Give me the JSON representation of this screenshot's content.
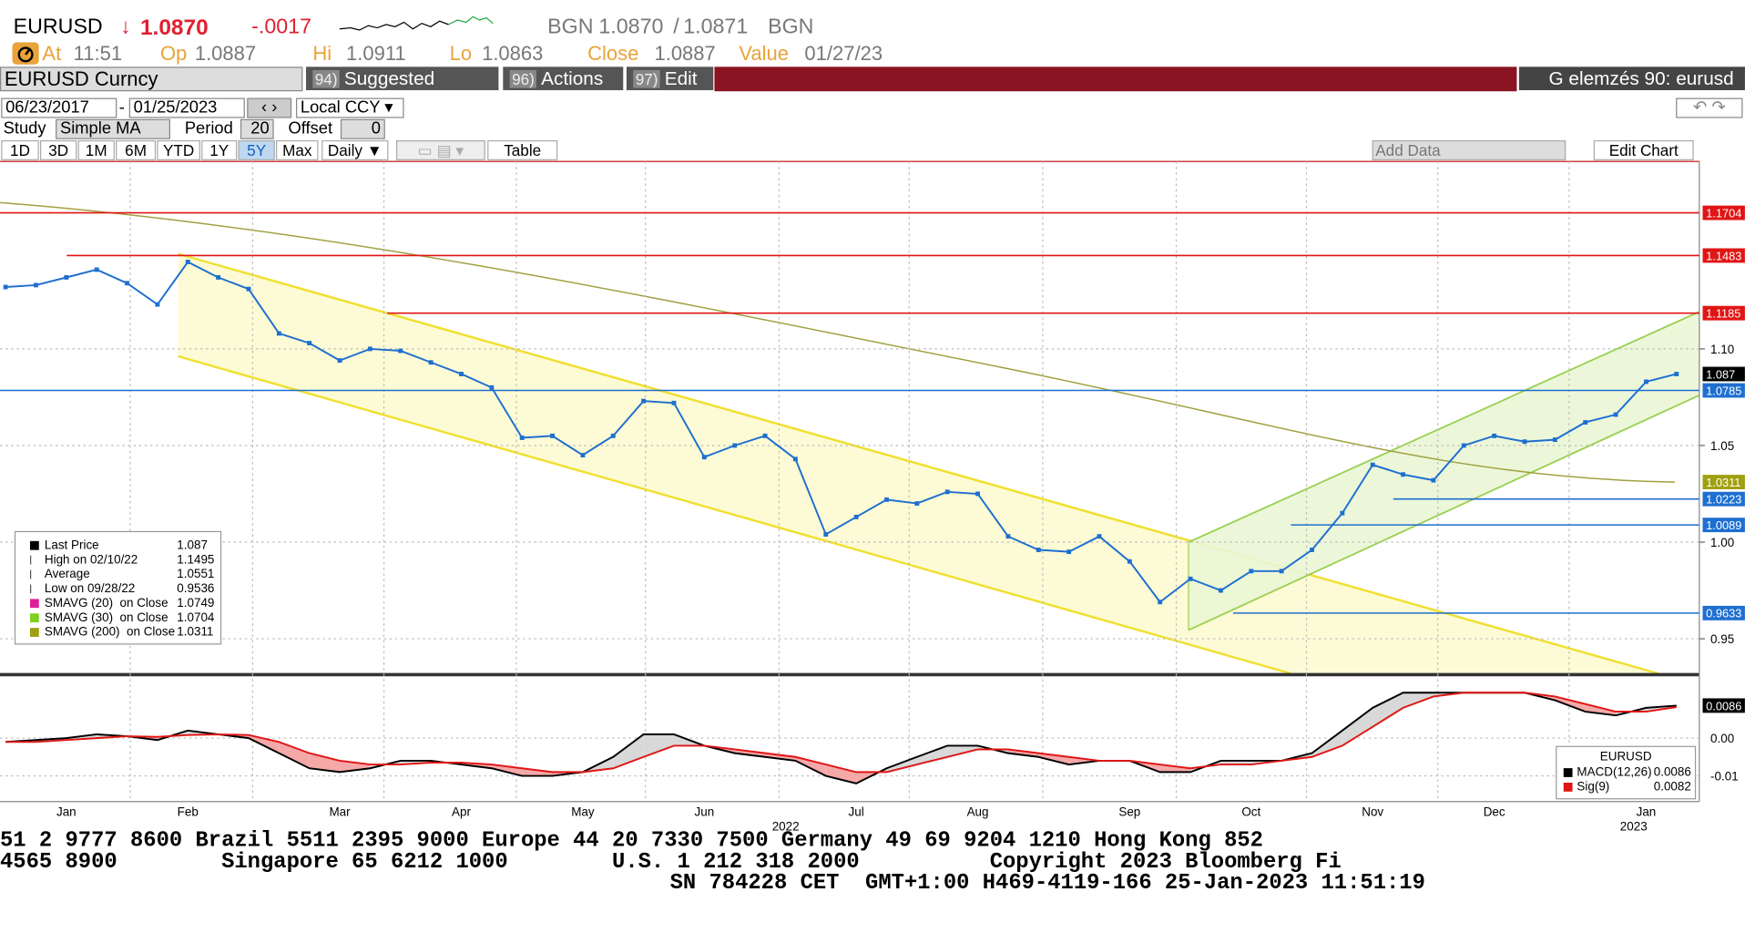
{
  "header": {
    "ticker": "EURUSD",
    "last_arrow": "↓",
    "last": "1.0870",
    "change": "-.0017",
    "source": "BGN",
    "bid": "1.0870",
    "separator": "/",
    "ask": "1.0871",
    "source2": "BGN"
  },
  "quote": {
    "at_label": "At",
    "time": "11:51",
    "open_label": "Op",
    "open": "1.0887",
    "high_label": "Hi",
    "high": "1.0911",
    "low_label": "Lo",
    "low": "1.0863",
    "close_label": "Close",
    "close": "1.0887",
    "value_label": "Value",
    "value_date": "01/27/23"
  },
  "toolbar": {
    "security": "EURUSD Curncy",
    "menus": [
      {
        "number": "94)",
        "label": "Suggested Charts"
      },
      {
        "number": "96)",
        "label": "Actions"
      },
      {
        "number": "97)",
        "label": "Edit"
      }
    ],
    "launchpad": "G elemzés 90: eurusd"
  },
  "date_range": {
    "start": "06/23/2017",
    "separator": "-",
    "end": "01/25/2023",
    "currency": "Local CCY"
  },
  "study": {
    "label": "Study",
    "type": "Simple MA",
    "period_label": "Period",
    "period": "20",
    "offset_label": "Offset",
    "offset": "0"
  },
  "ranges": {
    "buttons": [
      "1D",
      "3D",
      "1M",
      "6M",
      "YTD",
      "1Y",
      "5Y",
      "Max"
    ],
    "selected_index": 6,
    "frequency": "Daily",
    "table": "Table",
    "add_data": "Add Data",
    "edit_chart": "Edit Chart"
  },
  "legend_box": [
    {
      "label": "Last Price",
      "value": "1.087",
      "color": "#000000"
    },
    {
      "label": "High on 02/10/22",
      "value": "1.1495",
      "color": null
    },
    {
      "label": "Average",
      "value": "1.0551",
      "color": null
    },
    {
      "label": "Low on 09/28/22",
      "value": "0.9536",
      "color": null
    },
    {
      "label": "SMAVG (20)  on Close",
      "value": "1.0749",
      "color": "#e0209a"
    },
    {
      "label": "SMAVG (30)  on Close",
      "value": "1.0704",
      "color": "#7fd020"
    },
    {
      "label": "SMAVG (200)  on Close",
      "value": "1.0311",
      "color": "#a0a010"
    }
  ],
  "macd_legend": {
    "title": "EURUSD",
    "values": [
      "0.0086",
      "0.0082"
    ]
  },
  "ticker_lines": [
    "51 2 9777 8600 Brazil 5511 2395 9000 Europe 44 20 7330 7500 Germany 49 69 9204 1210 Hong Kong 852",
    "4565 8900        Singapore 65 6212 1000        U.S. 1 212 318 2000          Copyright 2023 Bloomberg Fi",
    "SN 784228 CET  GMT+1:00 H469-4119-166 25-Jan-2023 11:51:19"
  ],
  "chart_data": [
    {
      "type": "line",
      "color": "#1e6fd0",
      "categories": [
        null,
        null,
        "Jan",
        null,
        null,
        null,
        "Feb",
        null,
        null,
        null,
        null,
        "Mar",
        null,
        null,
        null,
        "Apr",
        null,
        null,
        null,
        "May",
        null,
        null,
        null,
        "Jun",
        null,
        null,
        null,
        null,
        "Jul",
        null,
        null,
        null,
        "Aug",
        null,
        null,
        null,
        null,
        "Sep",
        null,
        null,
        null,
        "Oct",
        null,
        null,
        null,
        "Nov",
        null,
        null,
        null,
        "Dec",
        null,
        null,
        null,
        null,
        "Jan",
        null
      ],
      "values": [
        1.132,
        1.133,
        1.137,
        1.141,
        1.134,
        1.123,
        1.145,
        1.137,
        1.131,
        1.108,
        1.103,
        1.094,
        1.1,
        1.099,
        1.093,
        1.087,
        1.08,
        1.054,
        1.055,
        1.045,
        1.055,
        1.073,
        1.072,
        1.044,
        1.05,
        1.055,
        1.043,
        1.004,
        1.013,
        1.022,
        1.02,
        1.026,
        1.025,
        1.003,
        0.996,
        0.995,
        1.003,
        0.99,
        0.969,
        0.981,
        0.975,
        0.985,
        0.985,
        0.996,
        1.015,
        1.04,
        1.035,
        1.032,
        1.05,
        1.055,
        1.052,
        1.053,
        1.062,
        1.066,
        1.083,
        1.087
      ],
      "year_labels": [
        "2022",
        "2023"
      ],
      "ylim": [
        0.932,
        1.197
      ],
      "yticks": [
        0.95,
        {
          "value": 1,
          "label": "1.00"
        },
        1.05,
        {
          "value": 1.1,
          "label": "1.10"
        }
      ],
      "grid": true,
      "levels": [
        {
          "value": 1.1704,
          "color": "#e01515",
          "line": true
        },
        {
          "value": 1.1483,
          "color": "#e01515",
          "line": true
        },
        {
          "value": 1.1185,
          "color": "#e01515",
          "line": true
        },
        {
          "value": 1.087,
          "color": "#000000",
          "line": false
        },
        {
          "value": 1.0785,
          "color": "#1e6fd0",
          "line": true
        },
        {
          "value": 1.0311,
          "color": "#a0a010",
          "line": false
        },
        {
          "value": 1.0223,
          "color": "#1e6fd0",
          "line": true
        },
        {
          "value": 1.0089,
          "color": "#1e6fd0",
          "line": true
        },
        {
          "value": 0.9633,
          "color": "#1e6fd0",
          "line": true
        }
      ]
    },
    {
      "type": "line",
      "series": [
        {
          "name": "MACD(12,26)",
          "color": "#000000",
          "values": [
            -0.001,
            -0.0005,
            0,
            0.001,
            0.0005,
            -0.0005,
            0.002,
            0.001,
            0,
            -0.004,
            -0.008,
            -0.009,
            -0.008,
            -0.006,
            -0.006,
            -0.007,
            -0.008,
            -0.01,
            -0.01,
            -0.009,
            -0.005,
            0.001,
            0.001,
            -0.002,
            -0.004,
            -0.005,
            -0.006,
            -0.01,
            -0.012,
            -0.008,
            -0.005,
            -0.002,
            -0.002,
            -0.004,
            -0.005,
            -0.007,
            -0.006,
            -0.006,
            -0.009,
            -0.009,
            -0.006,
            -0.006,
            -0.006,
            -0.004,
            0.002,
            0.008,
            0.012,
            0.012,
            0.012,
            0.012,
            0.012,
            0.01,
            0.007,
            0.006,
            0.008,
            0.0086
          ]
        },
        {
          "name": "Sig(9)",
          "color": "#e01515",
          "values": [
            -0.001,
            -0.001,
            -0.0005,
            0,
            0.0005,
            0.0003,
            0.0008,
            0.001,
            0.0008,
            -0.001,
            -0.004,
            -0.006,
            -0.007,
            -0.007,
            -0.0065,
            -0.0065,
            -0.007,
            -0.008,
            -0.009,
            -0.009,
            -0.008,
            -0.005,
            -0.002,
            -0.002,
            -0.003,
            -0.004,
            -0.005,
            -0.007,
            -0.009,
            -0.009,
            -0.007,
            -0.005,
            -0.003,
            -0.003,
            -0.004,
            -0.005,
            -0.006,
            -0.006,
            -0.007,
            -0.008,
            -0.007,
            -0.007,
            -0.006,
            -0.005,
            -0.002,
            0.003,
            0.008,
            0.011,
            0.012,
            0.012,
            0.012,
            0.011,
            0.009,
            0.007,
            0.007,
            0.0082
          ]
        }
      ],
      "ylim": [
        -0.0168,
        0.0156
      ],
      "yticks": [
        {
          "value": 0,
          "label": "0.00"
        },
        -0.01
      ],
      "grid": true,
      "last_label": 0.0086
    }
  ]
}
